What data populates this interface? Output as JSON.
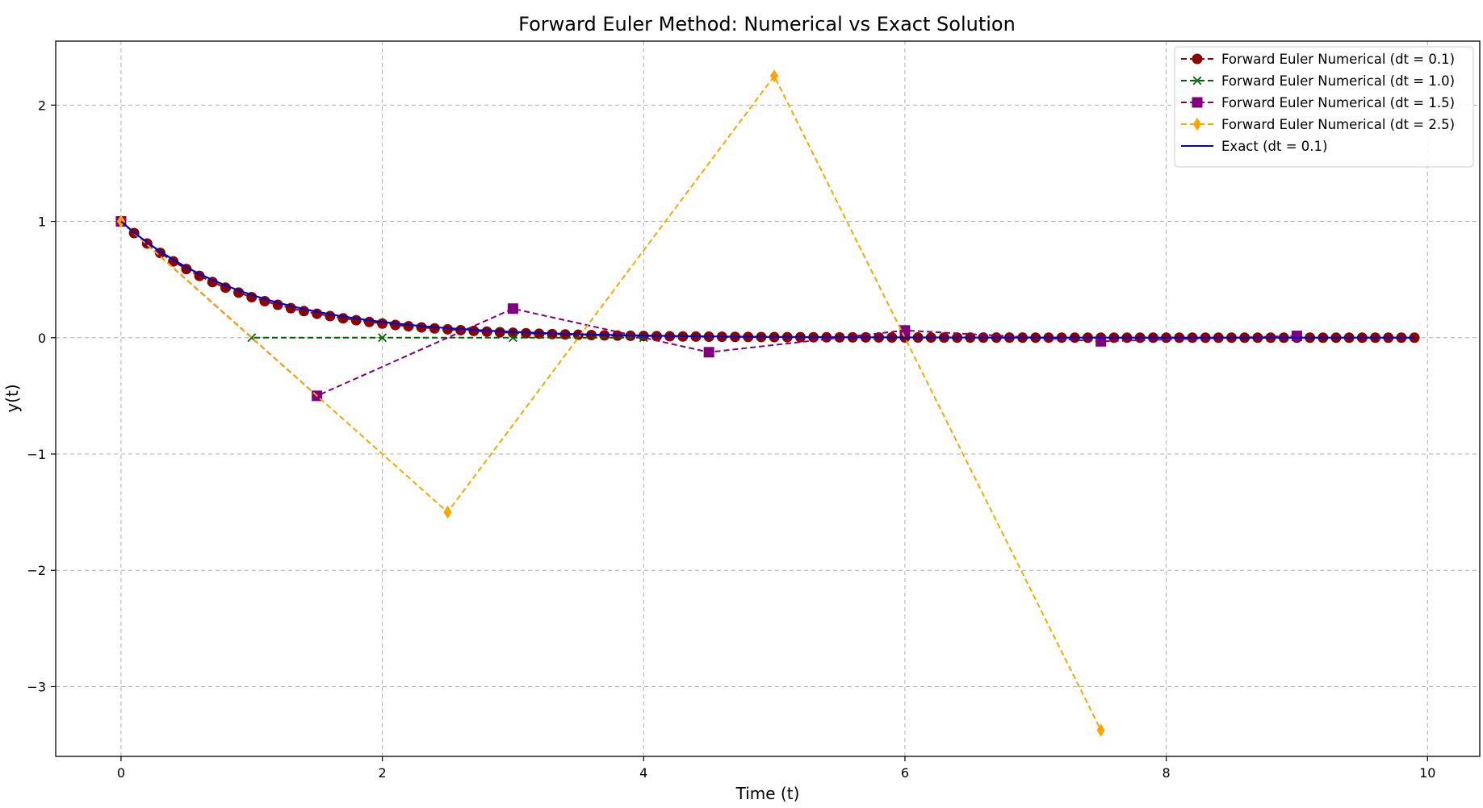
{
  "chart_data": {
    "type": "line",
    "title": "Forward Euler Method: Numerical vs Exact Solution",
    "xlabel": "Time (t)",
    "ylabel": "y(t)",
    "xlim": [
      -0.5,
      10.4
    ],
    "ylim": [
      -3.6,
      2.55
    ],
    "xticks": [
      0,
      2,
      4,
      6,
      8,
      10
    ],
    "yticks": [
      -3,
      -2,
      -1,
      0,
      1,
      2
    ],
    "grid": true,
    "legend_position": "top-right",
    "series": [
      {
        "name": "Forward Euler Numerical (dt = 0.1)",
        "color": "#8b0000",
        "line": "dashed",
        "marker": "circle",
        "dt": 0.1,
        "n": 100,
        "rule": "y[n+1] = 0.9 * y[n]",
        "y0": 1
      },
      {
        "name": "Forward Euler Numerical (dt = 1.0)",
        "color": "#006400",
        "line": "dashed",
        "marker": "x",
        "x": [
          0,
          1,
          2,
          3,
          4
        ],
        "y": [
          1,
          0,
          0,
          0,
          0
        ]
      },
      {
        "name": "Forward Euler Numerical (dt = 1.5)",
        "color": "#800080",
        "line": "dashed",
        "marker": "square",
        "x": [
          0,
          1.5,
          3,
          4.5,
          6,
          7.5,
          9
        ],
        "y": [
          1,
          -0.5,
          0.25,
          -0.125,
          0.0625,
          -0.03125,
          0.015625
        ]
      },
      {
        "name": "Forward Euler Numerical (dt = 2.5)",
        "color": "#ffa500",
        "line": "dashed",
        "marker": "diamond",
        "x": [
          0,
          2.5,
          5,
          7.5
        ],
        "y": [
          1,
          -1.5,
          2.25,
          -3.375
        ]
      },
      {
        "name": "Exact (dt = 0.1)",
        "color": "#0000cd",
        "line": "solid",
        "marker": "none",
        "function": "exp(-t)",
        "dt": 0.1,
        "n": 100
      }
    ]
  }
}
